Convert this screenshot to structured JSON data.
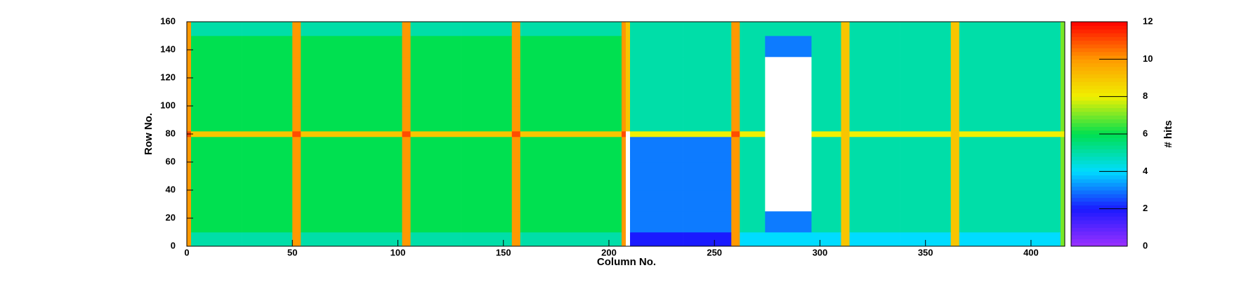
{
  "chart_data": {
    "type": "heatmap",
    "x_label": "Column No.",
    "y_label": "Row No.",
    "z_label": "# hits",
    "xbins": [
      0,
      2,
      26,
      50,
      54,
      78,
      102,
      106,
      130,
      154,
      158,
      182,
      206,
      208,
      210,
      235,
      258,
      262,
      274,
      296,
      310,
      314,
      338,
      362,
      366,
      390,
      414,
      416
    ],
    "ybins": [
      0,
      10,
      25,
      40,
      60,
      78,
      82,
      100,
      120,
      135,
      150,
      160
    ],
    "z": [
      [
        10,
        5,
        5,
        10,
        5,
        5,
        10,
        5,
        5,
        10,
        5,
        5,
        10,
        0,
        2,
        2,
        10,
        4,
        4,
        4,
        9,
        4,
        4,
        9,
        4,
        4,
        7
      ],
      [
        10,
        6,
        6,
        10,
        6,
        6,
        10,
        6,
        6,
        10,
        6,
        6,
        10,
        0,
        3,
        3,
        10,
        5,
        3,
        5,
        9,
        5,
        5,
        9,
        5,
        5,
        7
      ],
      [
        10,
        6,
        6,
        10,
        6,
        6,
        10,
        6,
        6,
        10,
        6,
        6,
        10,
        0,
        3,
        3,
        10,
        5,
        0,
        5,
        9,
        5,
        5,
        9,
        5,
        5,
        7
      ],
      [
        10,
        6,
        6,
        10,
        6,
        6,
        10,
        6,
        6,
        10,
        6,
        6,
        10,
        0,
        3,
        3,
        10,
        5,
        0,
        5,
        9,
        5,
        5,
        9,
        5,
        5,
        7
      ],
      [
        10,
        6,
        6,
        10,
        6,
        6,
        10,
        6,
        6,
        10,
        6,
        6,
        10,
        0,
        3,
        3,
        10,
        5,
        0,
        5,
        9,
        5,
        5,
        9,
        5,
        5,
        7
      ],
      [
        11,
        9,
        9,
        11,
        9,
        9,
        11,
        9,
        9,
        11,
        9,
        9,
        11,
        0,
        8,
        8,
        11,
        8,
        0,
        8,
        9,
        8,
        8,
        9,
        8,
        8,
        8
      ],
      [
        10,
        6,
        6,
        10,
        6,
        6,
        10,
        6,
        6,
        10,
        6,
        6,
        10,
        9,
        5,
        5,
        10,
        5,
        0,
        5,
        9,
        5,
        5,
        9,
        5,
        5,
        7
      ],
      [
        10,
        6,
        6,
        10,
        6,
        6,
        10,
        6,
        6,
        10,
        6,
        6,
        10,
        9,
        5,
        5,
        10,
        5,
        0,
        5,
        9,
        5,
        5,
        9,
        5,
        5,
        7
      ],
      [
        10,
        6,
        6,
        10,
        6,
        6,
        10,
        6,
        6,
        10,
        6,
        6,
        10,
        9,
        5,
        5,
        10,
        5,
        0,
        5,
        9,
        5,
        5,
        9,
        5,
        5,
        7
      ],
      [
        10,
        6,
        6,
        10,
        6,
        6,
        10,
        6,
        6,
        10,
        6,
        6,
        10,
        9,
        5,
        5,
        10,
        5,
        3,
        5,
        9,
        5,
        5,
        9,
        5,
        5,
        7
      ],
      [
        10,
        5,
        5,
        10,
        5,
        5,
        10,
        5,
        5,
        10,
        5,
        5,
        10,
        9,
        5,
        5,
        10,
        5,
        5,
        5,
        9,
        5,
        5,
        9,
        5,
        5,
        7
      ]
    ],
    "xlim": [
      0,
      416
    ],
    "xticks": [
      0,
      50,
      100,
      150,
      200,
      250,
      300,
      350,
      400
    ],
    "ylim": [
      0,
      160
    ],
    "yticks": [
      0,
      20,
      40,
      60,
      80,
      100,
      120,
      140,
      160
    ],
    "zlim": [
      0,
      12
    ],
    "zticks": [
      0,
      2,
      4,
      6,
      8,
      10,
      12
    ],
    "colormap": [
      "#9b30ff",
      "#1a1aff",
      "#00dcff",
      "#00e050",
      "#f0f000",
      "#ff9900",
      "#ff0000"
    ],
    "empty_color": "#ffffff"
  }
}
